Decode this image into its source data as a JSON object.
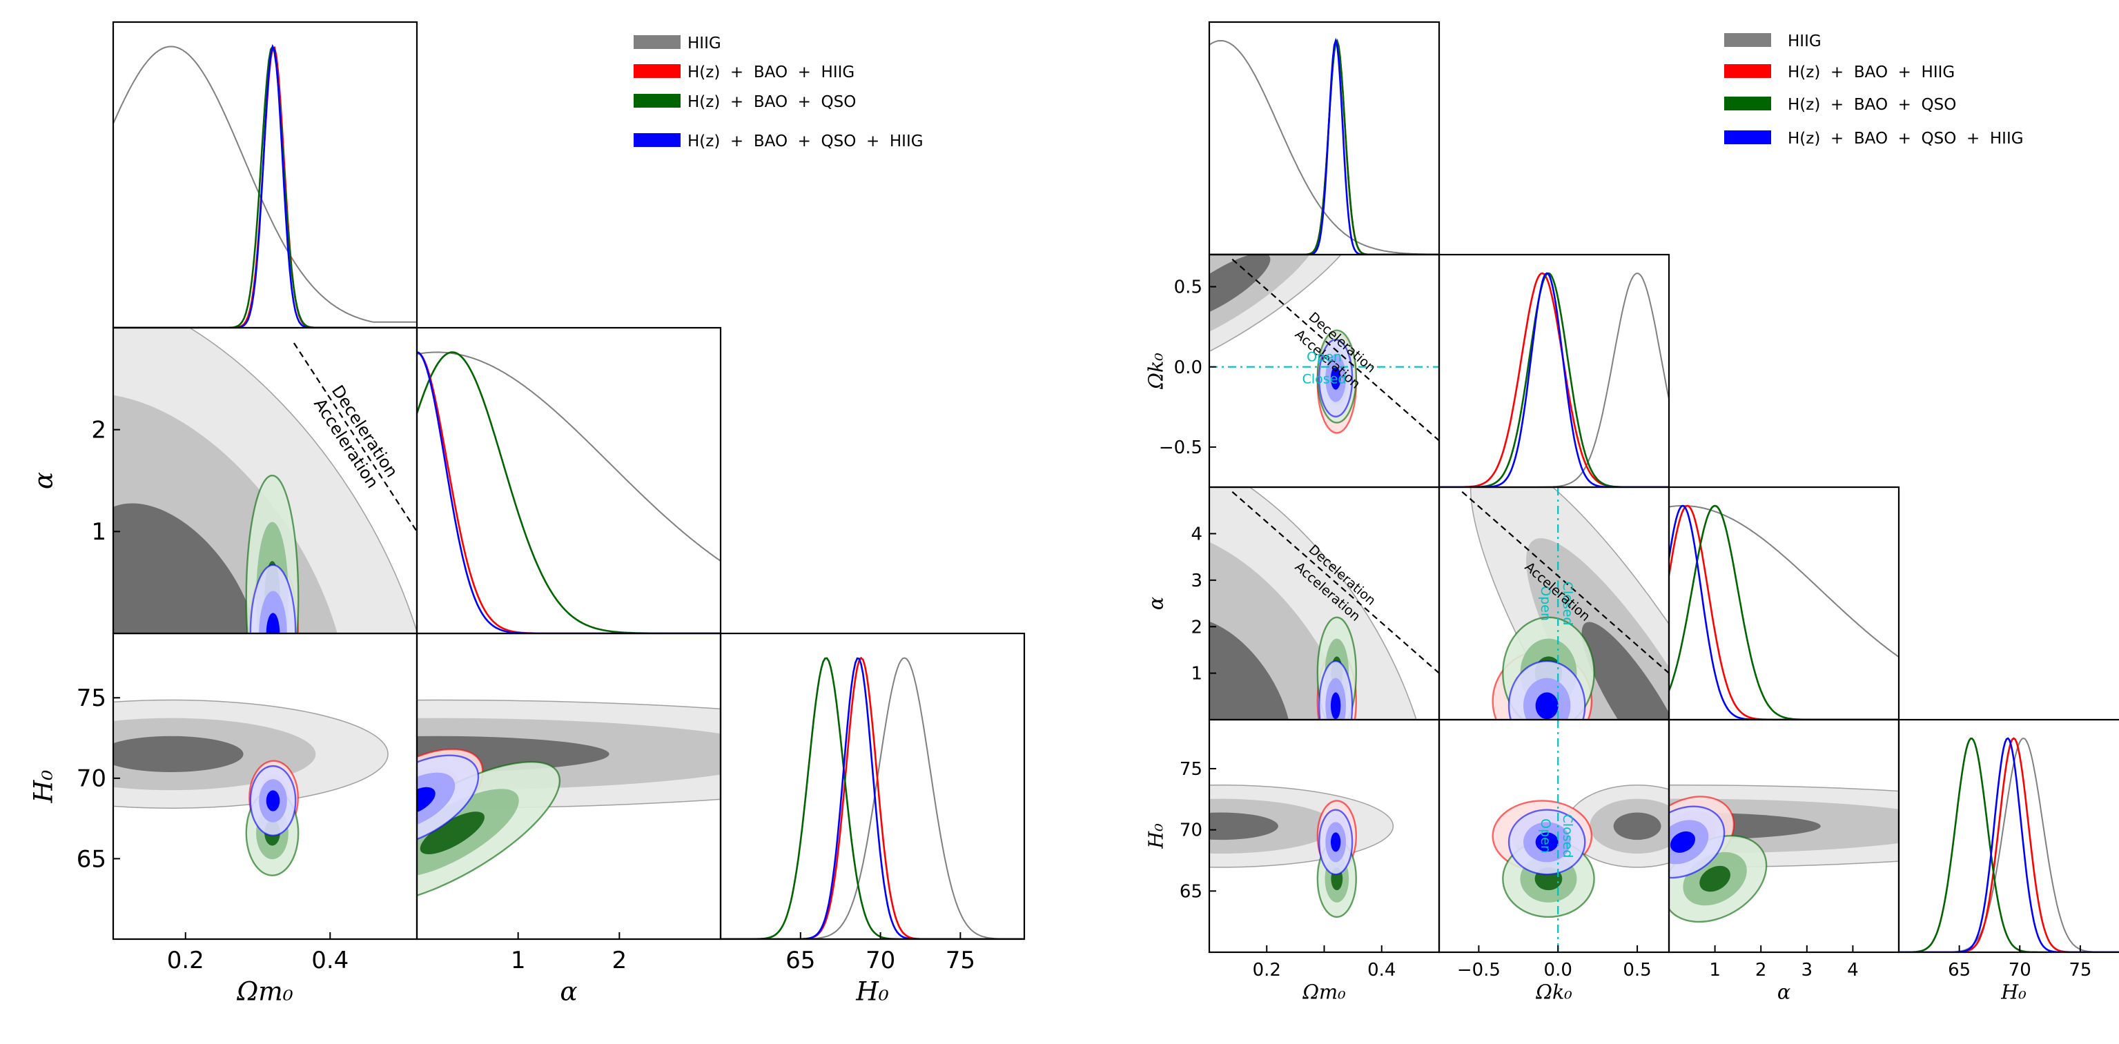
{
  "figure": {
    "panels": [
      "left",
      "right"
    ]
  },
  "legend_entries": [
    {
      "label": "HIIG",
      "color": "#808080"
    },
    {
      "label": "H(z)  +  BAO  +  HIIG",
      "color": "#ff0000"
    },
    {
      "label": "H(z)  +  BAO  +  QSO",
      "color": "#006400"
    },
    {
      "label": "H(z)  +  BAO  +  QSO  +  HIIG",
      "color": "#0000ff"
    }
  ],
  "chart_data": [
    {
      "type": "corner",
      "panel": "left",
      "params": [
        {
          "key": "Om",
          "label": "Ωm₀",
          "range": [
            0.1,
            0.52
          ],
          "ticks": [
            0.2,
            0.4
          ],
          "ticklabels": [
            "0.2",
            "0.4"
          ]
        },
        {
          "key": "alpha",
          "label": "α",
          "range": [
            0,
            3.0
          ],
          "ticks": [
            1,
            2
          ],
          "ticklabels": [
            "1",
            "2"
          ]
        },
        {
          "key": "H0",
          "label": "H₀",
          "range": [
            60,
            79
          ],
          "ticks": [
            65,
            70,
            75
          ],
          "ticklabels": [
            "65",
            "70",
            "75"
          ]
        }
      ],
      "series": [
        {
          "name": "HIIG",
          "color": "#808080",
          "style": "filled-gray",
          "marginals": {
            "Om": {
              "peak": 0.18,
              "sigma": 0.1,
              "left_val": 0.6,
              "tail": 0.02
            },
            "alpha": {
              "peak": 0.2,
              "sigma": 1.7
            },
            "H0": {
              "peak": 71.5,
              "sigma": 1.6
            }
          }
        },
        {
          "name": "H(z)  +  BAO  +  HIIG",
          "color": "#ff0000",
          "marginals": {
            "Om": {
              "peak": 0.322,
              "sigma": 0.014
            },
            "alpha": {
              "peak": 0.0,
              "sigma": 0.3
            },
            "H0": {
              "peak": 68.8,
              "sigma": 0.95
            }
          }
        },
        {
          "name": "H(z)  +  BAO  +  QSO",
          "color": "#006400",
          "marginals": {
            "Om": {
              "peak": 0.32,
              "sigma": 0.015
            },
            "alpha": {
              "peak": 0.35,
              "sigma": 0.5
            },
            "H0": {
              "peak": 66.6,
              "sigma": 1.1
            }
          }
        },
        {
          "name": "H(z)  +  BAO  +  QSO  +  HIIG",
          "color": "#0000ff",
          "marginals": {
            "Om": {
              "peak": 0.321,
              "sigma": 0.013
            },
            "alpha": {
              "peak": 0.0,
              "sigma": 0.28
            },
            "H0": {
              "peak": 68.6,
              "sigma": 0.9
            }
          }
        }
      ],
      "contours_2d": [
        {
          "pair": [
            "Om",
            "alpha"
          ],
          "series": "HIIG",
          "kind": "band",
          "levels": [
            {
              "width": 0.05,
              "color": "#696969"
            },
            {
              "width": 0.1,
              "color": "#bdbdbd"
            },
            {
              "width": 0.16,
              "color": "#e8e8e8"
            }
          ],
          "line": [
            [
              0.1,
              2.45
            ],
            [
              0.2,
              1.5
            ],
            [
              0.3,
              0.7
            ],
            [
              0.38,
              0.0
            ]
          ]
        },
        {
          "pair": [
            "Om",
            "alpha"
          ],
          "series": "H(z)  +  BAO  +  QSO",
          "kind": "ellipse",
          "center": [
            0.33,
            0.7
          ],
          "sx": 0.028,
          "sy": 1.2
        },
        {
          "pair": [
            "Om",
            "alpha"
          ],
          "series": "H(z)  +  BAO  +  HIIG",
          "kind": "ellipse",
          "center": [
            0.325,
            0.2
          ],
          "sx": 0.03,
          "sy": 0.6
        },
        {
          "pair": [
            "Om",
            "alpha"
          ],
          "series": "H(z)  +  BAO  +  QSO  +  HIIG",
          "kind": "ellipse",
          "center": [
            0.322,
            0.1
          ],
          "sx": 0.024,
          "sy": 0.5
        },
        {
          "pair": [
            "Om",
            "H0"
          ],
          "series": "HIIG",
          "kind": "blob",
          "center": [
            0.3,
            70.5
          ],
          "sx": 0.2,
          "sy": 4.6
        },
        {
          "pair": [
            "Om",
            "H0"
          ],
          "series": "H(z)  +  BAO  +  QSO",
          "kind": "ellipse",
          "center": [
            0.332,
            66.2
          ],
          "sx": 0.03,
          "sy": 4.2
        },
        {
          "pair": [
            "Om",
            "H0"
          ],
          "series": "H(z)  +  BAO  +  HIIG",
          "kind": "ellipse",
          "center": [
            0.33,
            68.6
          ],
          "sx": 0.032,
          "sy": 3.0
        },
        {
          "pair": [
            "Om",
            "H0"
          ],
          "series": "H(z)  +  BAO  +  QSO  +  HIIG",
          "kind": "ellipse",
          "center": [
            0.322,
            68.2
          ],
          "sx": 0.024,
          "sy": 2.4
        },
        {
          "pair": [
            "alpha",
            "H0"
          ],
          "series": "HIIG",
          "kind": "hband",
          "center": 70.8,
          "levels": [
            2.0,
            3.6,
            5.2
          ]
        },
        {
          "pair": [
            "alpha",
            "H0"
          ],
          "series": "H(z)  +  BAO  +  QSO",
          "kind": "tilted",
          "from": [
            0.0,
            67.5
          ],
          "to": [
            1.95,
            61.0
          ],
          "w": 1.8
        },
        {
          "pair": [
            "alpha",
            "H0"
          ],
          "series": "H(z)  +  BAO  +  HIIG",
          "kind": "tilted",
          "from": [
            0.0,
            69.0
          ],
          "to": [
            0.75,
            65.8
          ],
          "w": 1.8
        },
        {
          "pair": [
            "alpha",
            "H0"
          ],
          "series": "H(z)  +  BAO  +  QSO  +  HIIG",
          "kind": "tilted",
          "from": [
            0.0,
            68.6
          ],
          "to": [
            0.65,
            65.8
          ],
          "w": 1.5
        }
      ],
      "annotations": [
        {
          "pair": [
            "Om",
            "alpha"
          ],
          "text_top": "Deceleration",
          "text_bottom": "Acceleration",
          "line": [
            [
              0.35,
              2.85
            ],
            [
              0.52,
              1.0
            ]
          ]
        }
      ]
    },
    {
      "type": "corner",
      "panel": "right",
      "params": [
        {
          "key": "Om",
          "label": "Ωm₀",
          "range": [
            0.1,
            0.5
          ],
          "ticks": [
            0.2,
            0.3,
            0.4
          ],
          "ticklabels": [
            "0.2",
            "",
            "0.4"
          ]
        },
        {
          "key": "Ok",
          "label": "Ωk₀",
          "range": [
            -0.75,
            0.7
          ],
          "ticks": [
            -0.5,
            0.0,
            0.5
          ],
          "ticklabels": [
            "−0.5",
            "0.0",
            "0.5"
          ]
        },
        {
          "key": "alpha",
          "label": "α",
          "range": [
            0,
            5.0
          ],
          "ticks": [
            1,
            2,
            3,
            4
          ],
          "ticklabels": [
            "1",
            "2",
            "3",
            "4"
          ]
        },
        {
          "key": "H0",
          "label": "H₀",
          "range": [
            60,
            79
          ],
          "ticks": [
            65,
            70,
            75
          ],
          "ticklabels": [
            "65",
            "70",
            "75"
          ]
        }
      ],
      "series": [
        {
          "name": "HIIG",
          "color": "#808080",
          "marginals": {
            "Om": {
              "peak": 0.12,
              "sigma": 0.1
            },
            "Ok": {
              "peak": 0.5,
              "sigma": 0.15
            },
            "alpha": {
              "peak": 0.3,
              "sigma": 3.0
            },
            "H0": {
              "peak": 70.3,
              "sigma": 1.6
            }
          }
        },
        {
          "name": "H(z)  +  BAO  +  HIIG",
          "color": "#ff0000",
          "marginals": {
            "Om": {
              "peak": 0.322,
              "sigma": 0.014
            },
            "Ok": {
              "peak": -0.1,
              "sigma": 0.13
            },
            "alpha": {
              "peak": 0.4,
              "sigma": 0.45
            },
            "H0": {
              "peak": 69.5,
              "sigma": 1.2
            }
          }
        },
        {
          "name": "H(z)  +  BAO  +  QSO",
          "color": "#006400",
          "marginals": {
            "Om": {
              "peak": 0.322,
              "sigma": 0.014
            },
            "Ok": {
              "peak": -0.06,
              "sigma": 0.12
            },
            "alpha": {
              "peak": 1.0,
              "sigma": 0.5
            },
            "H0": {
              "peak": 66.0,
              "sigma": 1.3
            }
          }
        },
        {
          "name": "H(z)  +  BAO  +  QSO  +  HIIG",
          "color": "#0000ff",
          "marginals": {
            "Om": {
              "peak": 0.32,
              "sigma": 0.012
            },
            "Ok": {
              "peak": -0.07,
              "sigma": 0.1
            },
            "alpha": {
              "peak": 0.3,
              "sigma": 0.4
            },
            "H0": {
              "peak": 69.0,
              "sigma": 1.1
            }
          }
        }
      ],
      "annotations": [
        {
          "pair": [
            "Om",
            "Ok"
          ],
          "text_top": "Deceleration",
          "text_bottom": "Acceleration"
        },
        {
          "pair": [
            "Om",
            "Ok"
          ],
          "text_top": "Open",
          "text_bottom": "Closed"
        },
        {
          "pair": [
            "Om",
            "alpha"
          ],
          "text_top": "Deceleration",
          "text_bottom": "Acceleration"
        },
        {
          "pair": [
            "Ok",
            "alpha"
          ],
          "text_top": "Closed",
          "text_bottom": "Open"
        },
        {
          "pair": [
            "Ok",
            "alpha"
          ],
          "text_top": "",
          "text_bottom": "Acceleration"
        },
        {
          "pair": [
            "Ok",
            "H0"
          ],
          "text_top": "Closed",
          "text_bottom": "Open"
        }
      ]
    }
  ]
}
